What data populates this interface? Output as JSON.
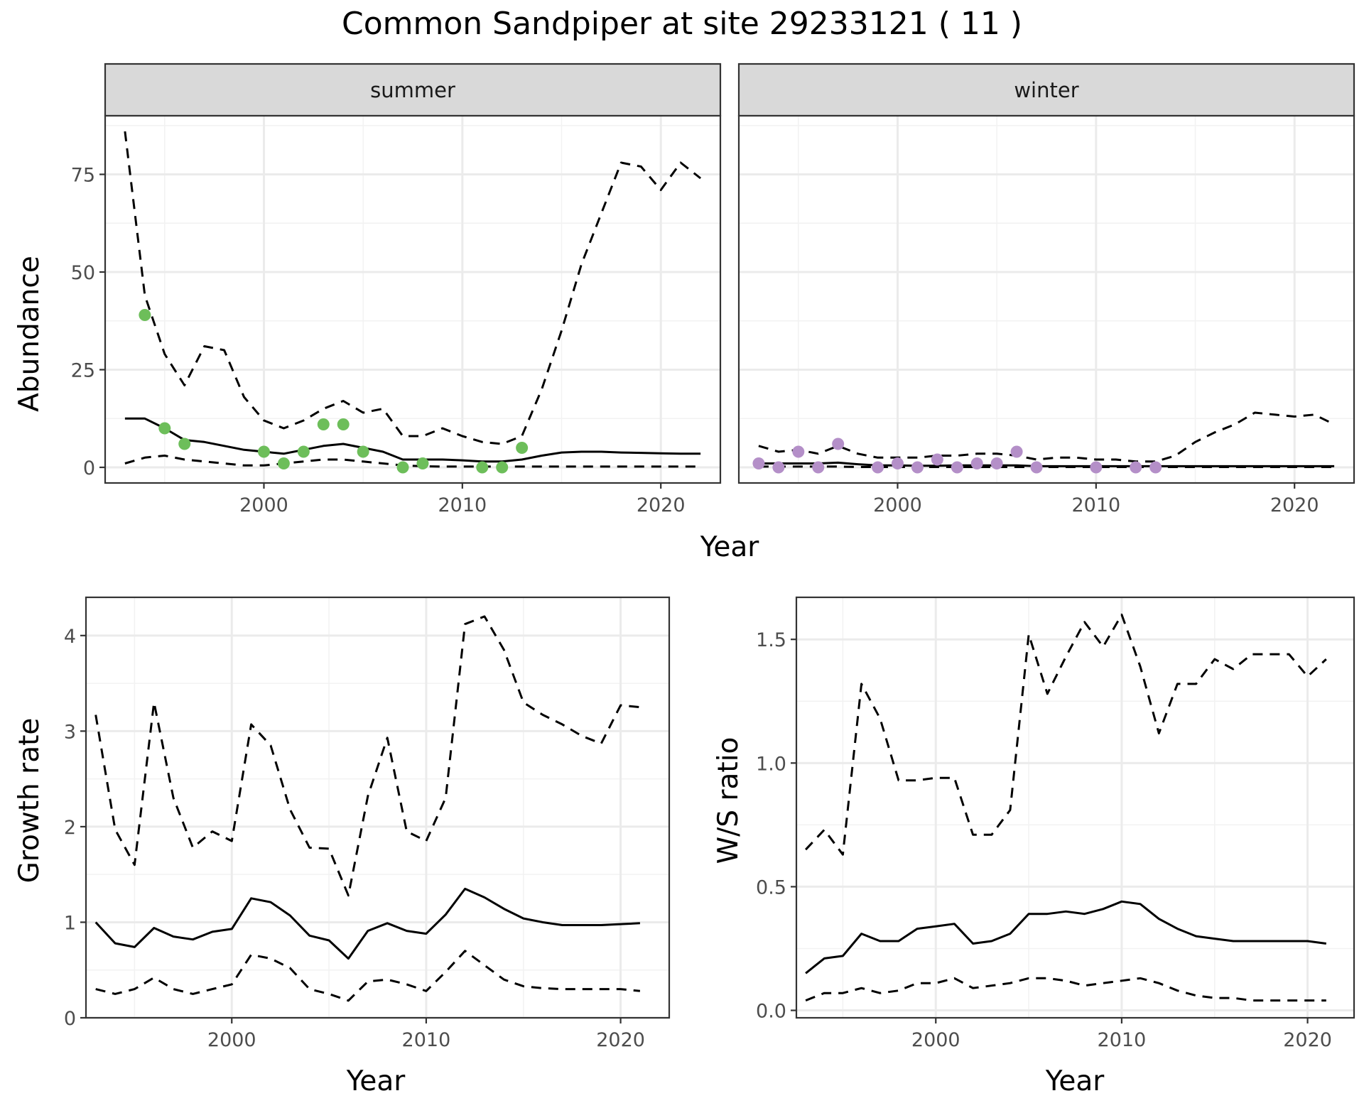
{
  "title": "Common Sandpiper at site 29233121 ( 11 )",
  "chart_data": [
    {
      "type": "line",
      "facets": [
        "summer",
        "winter"
      ],
      "xlabel": "Year",
      "ylabel": "Abundance",
      "xlim": [
        1992,
        2023
      ],
      "ylim": [
        -4,
        90
      ],
      "xticks": [
        2000,
        2010,
        2020
      ],
      "yticks": [
        0,
        25,
        50,
        75
      ],
      "grid": true,
      "panels": [
        {
          "name": "summer",
          "point_color": "#6dbe5a",
          "x": [
            1993,
            1994,
            1995,
            1996,
            1997,
            1998,
            1999,
            2000,
            2001,
            2002,
            2003,
            2004,
            2005,
            2006,
            2007,
            2008,
            2009,
            2010,
            2011,
            2012,
            2013,
            2014,
            2015,
            2016,
            2017,
            2018,
            2019,
            2020,
            2021,
            2022
          ],
          "series": [
            {
              "style": "solid",
              "values": [
                12.5,
                12.5,
                10,
                7,
                6.5,
                5.5,
                4.5,
                4,
                3.5,
                4.5,
                5.5,
                6,
                5,
                4,
                2,
                2,
                2,
                1.8,
                1.5,
                1.5,
                2,
                3,
                3.8,
                4,
                4,
                3.8,
                3.7,
                3.6,
                3.5,
                3.5
              ]
            },
            {
              "style": "dashed",
              "values": [
                86,
                44,
                29,
                21,
                31,
                30,
                18,
                12,
                10,
                12,
                15,
                17,
                14,
                15,
                8,
                8,
                10,
                8,
                6.5,
                6,
                8,
                20,
                35,
                52,
                65,
                78,
                77,
                71,
                78,
                74
              ]
            },
            {
              "style": "dashed",
              "values": [
                1,
                2.5,
                3,
                2,
                1.5,
                1,
                0.5,
                0.5,
                1,
                1.5,
                2,
                2,
                1.5,
                1,
                0.5,
                0.3,
                0.2,
                0.2,
                0.2,
                0.2,
                0.2,
                0.2,
                0.2,
                0.2,
                0.2,
                0.2,
                0.2,
                0.2,
                0.2,
                0.2
              ]
            }
          ],
          "points": {
            "x": [
              1994,
              1995,
              1996,
              2000,
              2001,
              2002,
              2003,
              2004,
              2005,
              2007,
              2008,
              2011,
              2012,
              2013
            ],
            "y": [
              39,
              10,
              6,
              4,
              1,
              4,
              11,
              11,
              4,
              0,
              1,
              0,
              0,
              5
            ]
          }
        },
        {
          "name": "winter",
          "point_color": "#b48fc8",
          "x": [
            1993,
            1994,
            1995,
            1996,
            1997,
            1998,
            1999,
            2000,
            2001,
            2002,
            2003,
            2004,
            2005,
            2006,
            2007,
            2008,
            2009,
            2010,
            2011,
            2012,
            2013,
            2014,
            2015,
            2016,
            2017,
            2018,
            2019,
            2020,
            2021,
            2022
          ],
          "series": [
            {
              "style": "solid",
              "values": [
                1,
                1,
                1,
                1,
                1.2,
                0.8,
                0.5,
                0.5,
                0.4,
                0.4,
                0.5,
                0.5,
                0.5,
                0.5,
                0.3,
                0.3,
                0.3,
                0.3,
                0.3,
                0.3,
                0.3,
                0.3,
                0.3,
                0.3,
                0.3,
                0.3,
                0.3,
                0.3,
                0.3,
                0.3
              ]
            },
            {
              "style": "dashed",
              "values": [
                5.5,
                4,
                4.5,
                3.5,
                5.5,
                3.5,
                2.5,
                2.5,
                2.5,
                3,
                3,
                3.5,
                3.5,
                3,
                2,
                2.5,
                2.5,
                2,
                2,
                1.5,
                1.5,
                3,
                6.5,
                9,
                11,
                14,
                13.5,
                13,
                13.5,
                11
              ]
            },
            {
              "style": "dashed",
              "values": [
                0.2,
                0.2,
                0.2,
                0.2,
                0.2,
                0.1,
                0.1,
                0.1,
                0.1,
                0.1,
                0.1,
                0.1,
                0.1,
                0.1,
                0.1,
                0.1,
                0.1,
                0.1,
                0.1,
                0.1,
                0.1,
                0.1,
                0.1,
                0.1,
                0.1,
                0.1,
                0.1,
                0.1,
                0.1,
                0.1
              ]
            }
          ],
          "points": {
            "x": [
              1993,
              1994,
              1995,
              1996,
              1997,
              1999,
              2000,
              2001,
              2002,
              2003,
              2004,
              2005,
              2006,
              2007,
              2010,
              2012,
              2013
            ],
            "y": [
              1,
              0,
              4,
              0,
              6,
              0,
              1,
              0,
              2,
              0,
              1,
              1,
              4,
              0,
              0,
              0,
              0
            ]
          }
        }
      ]
    },
    {
      "type": "line",
      "xlabel": "Year",
      "ylabel": "Growth rate",
      "xlim": [
        1992.5,
        2022.5
      ],
      "ylim": [
        0,
        4.4
      ],
      "xticks": [
        2000,
        2010,
        2020
      ],
      "yticks": [
        0,
        1,
        2,
        3,
        4
      ],
      "grid": true,
      "x": [
        1993,
        1994,
        1995,
        1996,
        1997,
        1998,
        1999,
        2000,
        2001,
        2002,
        2003,
        2004,
        2005,
        2006,
        2007,
        2008,
        2009,
        2010,
        2011,
        2012,
        2013,
        2014,
        2015,
        2016,
        2017,
        2018,
        2019,
        2020,
        2021
      ],
      "series": [
        {
          "style": "solid",
          "values": [
            1.0,
            0.78,
            0.74,
            0.94,
            0.85,
            0.82,
            0.9,
            0.93,
            1.25,
            1.21,
            1.07,
            0.86,
            0.81,
            0.62,
            0.91,
            0.99,
            0.91,
            0.88,
            1.08,
            1.35,
            1.26,
            1.14,
            1.04,
            1.0,
            0.97,
            0.97,
            0.97,
            0.98,
            0.99
          ]
        },
        {
          "style": "dashed",
          "values": [
            3.17,
            1.97,
            1.6,
            3.3,
            2.3,
            1.78,
            1.95,
            1.85,
            3.07,
            2.85,
            2.18,
            1.78,
            1.77,
            1.28,
            2.32,
            2.93,
            1.95,
            1.85,
            2.3,
            4.12,
            4.2,
            3.85,
            3.3,
            3.17,
            3.07,
            2.95,
            2.87,
            3.27,
            3.25
          ]
        },
        {
          "style": "dashed",
          "values": [
            0.3,
            0.25,
            0.3,
            0.42,
            0.3,
            0.25,
            0.3,
            0.35,
            0.66,
            0.62,
            0.52,
            0.3,
            0.25,
            0.18,
            0.38,
            0.4,
            0.35,
            0.28,
            0.48,
            0.7,
            0.55,
            0.4,
            0.33,
            0.31,
            0.3,
            0.3,
            0.3,
            0.3,
            0.28
          ]
        }
      ]
    },
    {
      "type": "line",
      "xlabel": "Year",
      "ylabel": "W/S ratio",
      "xlim": [
        1992.5,
        2022.5
      ],
      "ylim": [
        -0.03,
        1.67
      ],
      "xticks": [
        2000,
        2010,
        2020
      ],
      "yticks": [
        0.0,
        0.5,
        1.0,
        1.5
      ],
      "ytick_labels": [
        "0.0",
        "0.5",
        "1.0",
        "1.5"
      ],
      "grid": true,
      "x": [
        1993,
        1994,
        1995,
        1996,
        1997,
        1998,
        1999,
        2000,
        2001,
        2002,
        2003,
        2004,
        2005,
        2006,
        2007,
        2008,
        2009,
        2010,
        2011,
        2012,
        2013,
        2014,
        2015,
        2016,
        2017,
        2018,
        2019,
        2020,
        2021
      ],
      "series": [
        {
          "style": "solid",
          "values": [
            0.15,
            0.21,
            0.22,
            0.31,
            0.28,
            0.28,
            0.33,
            0.34,
            0.35,
            0.27,
            0.28,
            0.31,
            0.39,
            0.39,
            0.4,
            0.39,
            0.41,
            0.44,
            0.43,
            0.37,
            0.33,
            0.3,
            0.29,
            0.28,
            0.28,
            0.28,
            0.28,
            0.28,
            0.27
          ]
        },
        {
          "style": "dashed",
          "values": [
            0.65,
            0.73,
            0.63,
            1.32,
            1.18,
            0.93,
            0.93,
            0.94,
            0.94,
            0.71,
            0.71,
            0.81,
            1.52,
            1.28,
            1.43,
            1.57,
            1.47,
            1.6,
            1.39,
            1.12,
            1.32,
            1.32,
            1.42,
            1.38,
            1.44,
            1.44,
            1.44,
            1.35,
            1.42
          ]
        },
        {
          "style": "dashed",
          "values": [
            0.04,
            0.07,
            0.07,
            0.09,
            0.07,
            0.08,
            0.11,
            0.11,
            0.13,
            0.09,
            0.1,
            0.11,
            0.13,
            0.13,
            0.12,
            0.1,
            0.11,
            0.12,
            0.13,
            0.11,
            0.08,
            0.06,
            0.05,
            0.05,
            0.04,
            0.04,
            0.04,
            0.04,
            0.04
          ]
        }
      ]
    }
  ]
}
